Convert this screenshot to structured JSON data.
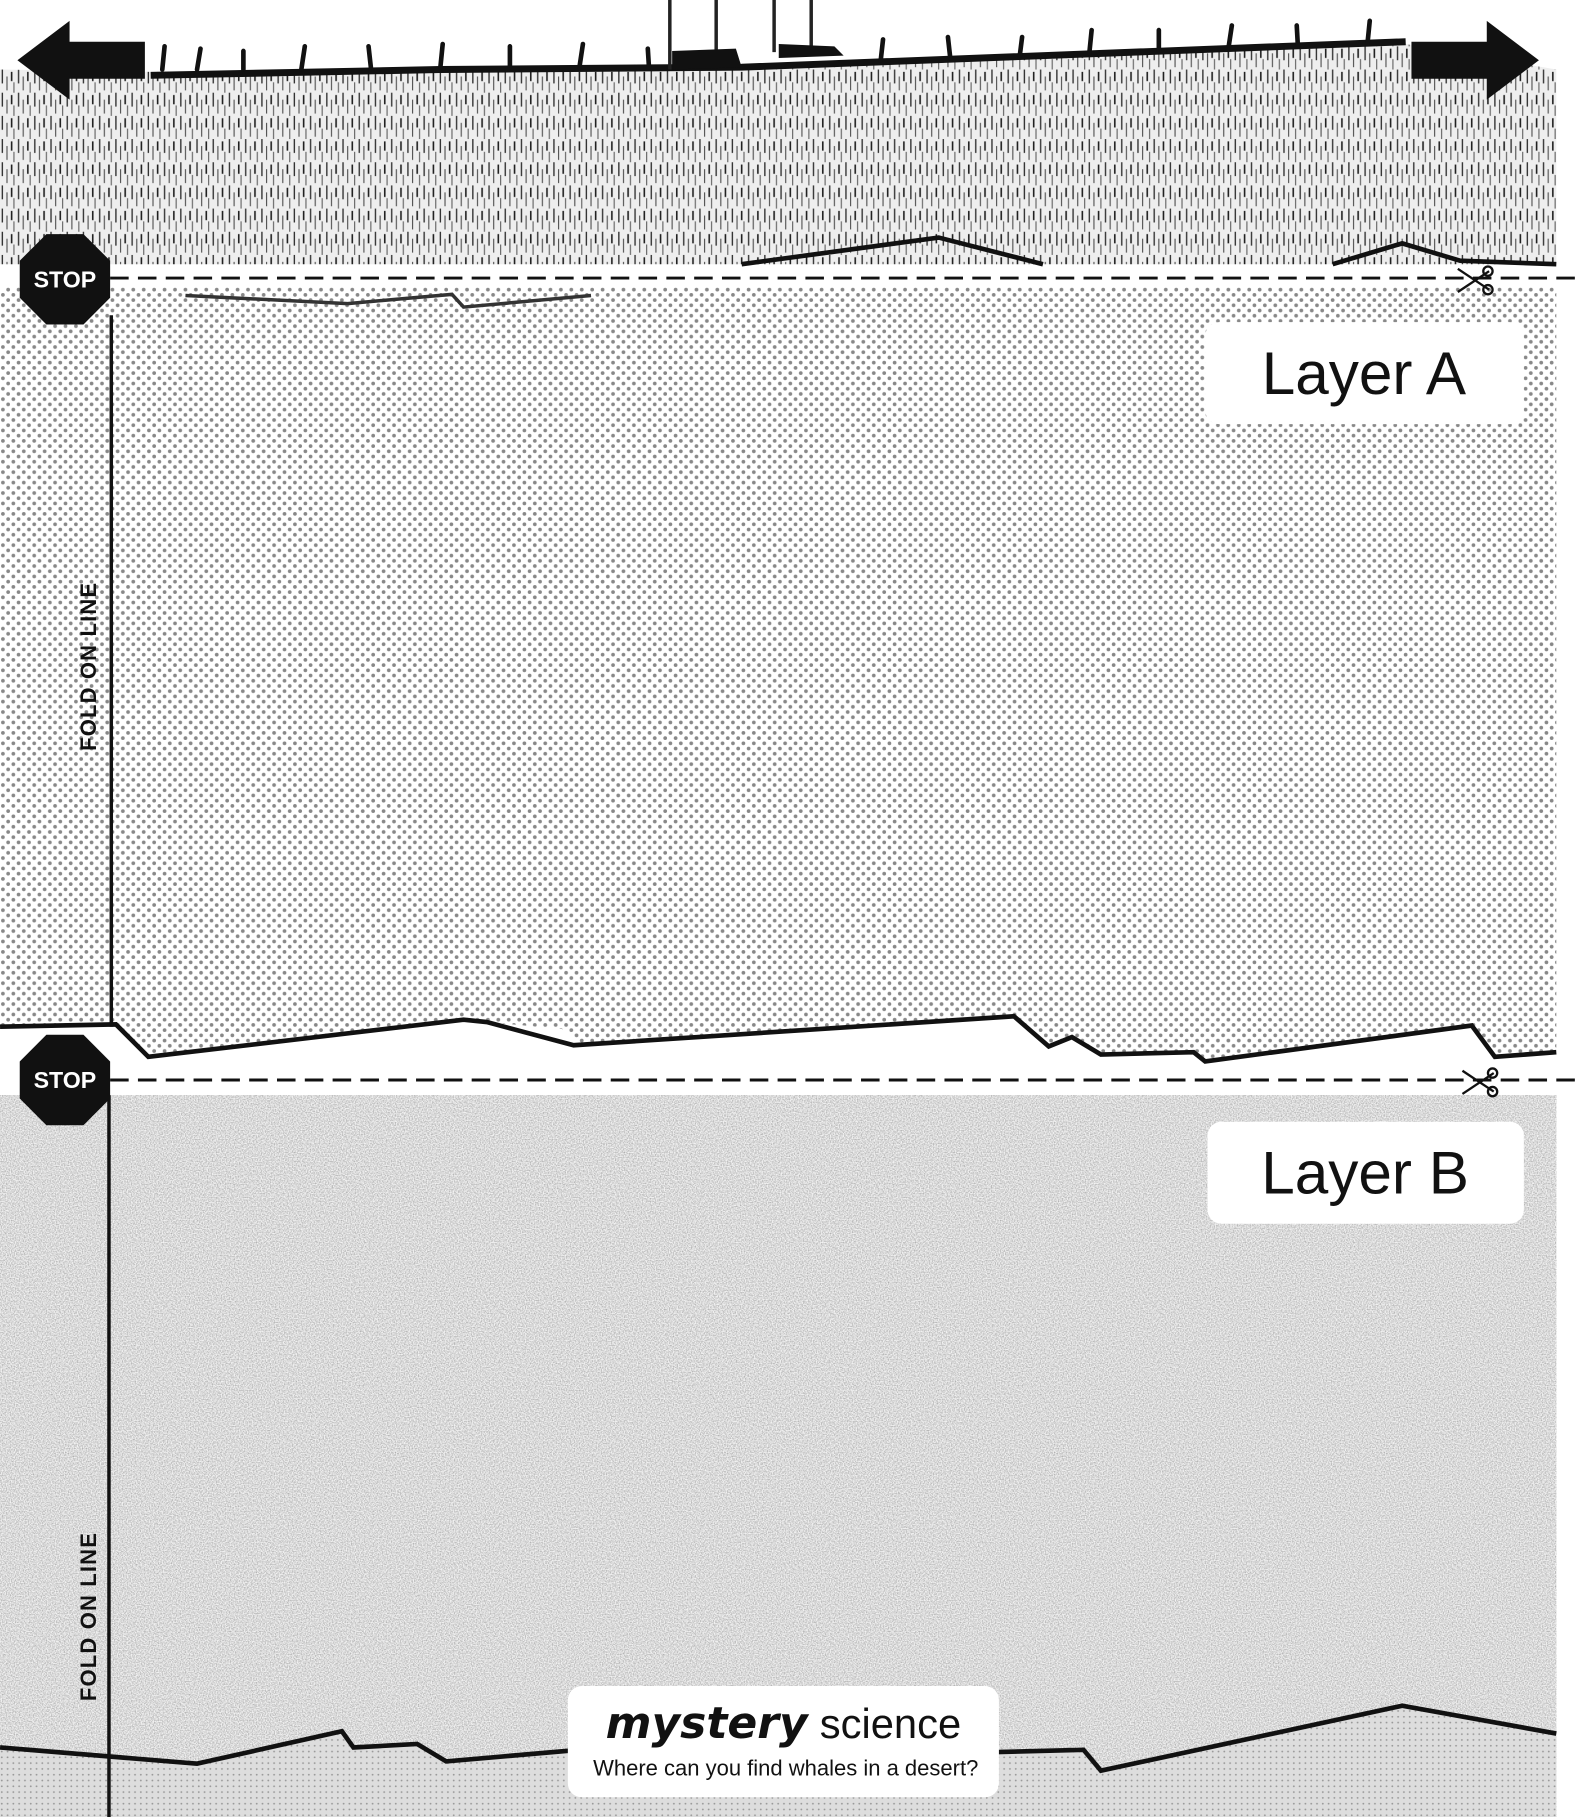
{
  "stops": [
    "STOP",
    "STOP"
  ],
  "layers": [
    {
      "label": "Layer A"
    },
    {
      "label": "Layer B"
    }
  ],
  "fold_labels": [
    "FOLD ON LINE",
    "FOLD ON LINE"
  ],
  "logo": {
    "brand": "mystery",
    "product": "science",
    "tagline": "Where can you find whales in a desert?"
  }
}
